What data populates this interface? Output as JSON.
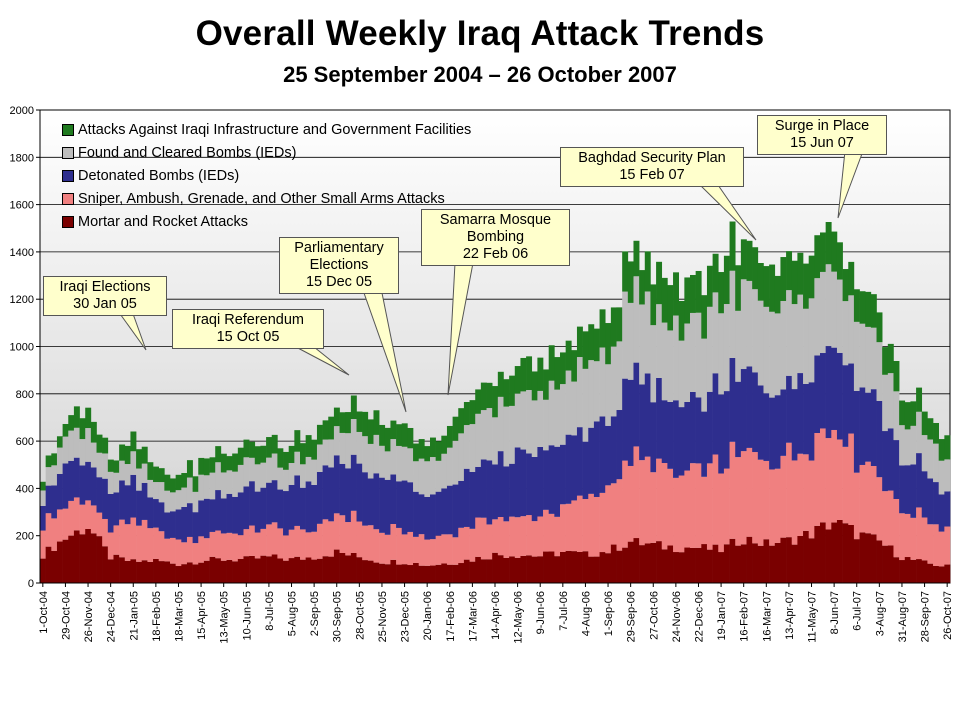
{
  "chart_data": {
    "type": "area",
    "title": "Overall Weekly Iraq Attack Trends",
    "subtitle": "25 September 2004 – 26 October 2007",
    "ylim": [
      0,
      2000
    ],
    "yticks": [
      "0",
      "200",
      "400",
      "600",
      "800",
      "1000",
      "1200",
      "1400",
      "1600",
      "1800",
      "2000"
    ],
    "x_tick_labels": [
      "1-Oct-04",
      "29-Oct-04",
      "26-Nov-04",
      "24-Dec-04",
      "21-Jan-05",
      "18-Feb-05",
      "18-Mar-05",
      "15-Apr-05",
      "13-May-05",
      "10-Jun-05",
      "8-Jul-05",
      "5-Aug-05",
      "2-Sep-05",
      "30-Sep-05",
      "28-Oct-05",
      "25-Nov-05",
      "23-Dec-05",
      "20-Jan-06",
      "17-Feb-06",
      "17-Mar-06",
      "14-Apr-06",
      "12-May-06",
      "9-Jun-06",
      "7-Jul-06",
      "4-Aug-06",
      "1-Sep-06",
      "29-Sep-06",
      "27-Oct-06",
      "24-Nov-06",
      "22-Dec-06",
      "19-Jan-07",
      "16-Feb-07",
      "16-Mar-07",
      "13-Apr-07",
      "11-May-07",
      "8-Jun-07",
      "6-Jul-07",
      "3-Aug-07",
      "31-Aug-07",
      "28-Sep-07",
      "26-Oct-07"
    ],
    "weeks_per_tick": 4,
    "grid": true,
    "legend_placement": "top-left",
    "series": [
      {
        "name": "Mortar and Rocket Attacks",
        "color": "#7a0000",
        "anchor_values": [
          120,
          190,
          240,
          110,
          90,
          95,
          80,
          95,
          100,
          100,
          110,
          100,
          110,
          130,
          110,
          90,
          90,
          75,
          85,
          100,
          120,
          120,
          115,
          130,
          120,
          135,
          175,
          160,
          150,
          150,
          140,
          190,
          165,
          180,
          210,
          260,
          210,
          175,
          110,
          85,
          70
        ]
      },
      {
        "name": "Sniper, Ambush, Grenade, and Other Small Arms Attacks",
        "color": "#f08080",
        "anchor_values": [
          130,
          140,
          120,
          110,
          180,
          120,
          100,
          100,
          120,
          110,
          125,
          120,
          120,
          160,
          160,
          130,
          140,
          110,
          130,
          150,
          160,
          160,
          170,
          180,
          230,
          280,
          350,
          340,
          310,
          320,
          350,
          370,
          350,
          360,
          380,
          410,
          320,
          280,
          200,
          190,
          160
        ]
      },
      {
        "name": "Detonated Bombs (IEDs)",
        "color": "#2e2e8e",
        "anchor_values": [
          120,
          170,
          160,
          150,
          160,
          120,
          130,
          150,
          170,
          170,
          180,
          190,
          190,
          250,
          220,
          210,
          210,
          170,
          190,
          230,
          250,
          260,
          260,
          280,
          280,
          290,
          320,
          310,
          300,
          310,
          320,
          340,
          320,
          320,
          330,
          370,
          330,
          300,
          220,
          200,
          140
        ]
      },
      {
        "name": "Found and Cleared Bombs (IEDs)",
        "color": "#bdbdbd",
        "anchor_values": [
          70,
          110,
          130,
          90,
          100,
          80,
          90,
          100,
          110,
          110,
          110,
          100,
          110,
          120,
          150,
          140,
          130,
          140,
          160,
          200,
          230,
          240,
          240,
          250,
          270,
          300,
          340,
          340,
          320,
          340,
          360,
          340,
          340,
          330,
          330,
          300,
          270,
          230,
          180,
          160,
          140
        ]
      },
      {
        "name": "Attacks Against Iraqi Infrastructure and Government Facilities",
        "color": "#1f7a1f",
        "anchor_values": [
          40,
          60,
          100,
          50,
          90,
          60,
          60,
          70,
          70,
          70,
          80,
          80,
          90,
          90,
          100,
          90,
          90,
          70,
          90,
          110,
          120,
          130,
          130,
          140,
          150,
          160,
          160,
          170,
          170,
          180,
          180,
          190,
          180,
          180,
          170,
          170,
          140,
          130,
          110,
          100,
          90
        ]
      }
    ],
    "annotations": [
      {
        "lines": [
          "Iraqi Elections",
          "30 Jan 05"
        ]
      },
      {
        "lines": [
          "Iraqi Referendum",
          "15 Oct 05"
        ]
      },
      {
        "lines": [
          "Parliamentary",
          "Elections",
          "15 Dec 05"
        ]
      },
      {
        "lines": [
          "Samarra Mosque",
          "Bombing",
          "22 Feb 06"
        ]
      },
      {
        "lines": [
          "Baghdad Security Plan",
          "15 Feb 07"
        ]
      },
      {
        "lines": [
          "Surge in Place",
          "15 Jun 07"
        ]
      }
    ]
  }
}
